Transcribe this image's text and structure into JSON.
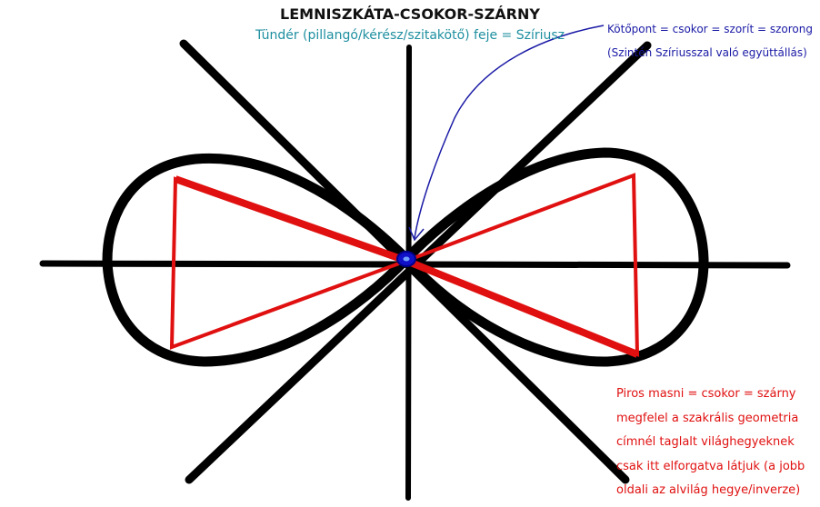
{
  "title": "LEMNISZKÁTA-CSOKOR-SZÁRNY",
  "subtitle": "Tündér (pillangó/kérész/szitakötő) feje = Szíriusz",
  "knot_note": {
    "line1": "Kötőpont = csokor = szorít = szorong",
    "line2": "(Szintén Szíriusszal való együttállás)"
  },
  "red_note": {
    "lines": [
      "Piros masni = csokor = szárny",
      "megfelel a szakrális geometria",
      "címnél taglalt világhegyeknek",
      "csak itt elforgatva látjuk (a jobb",
      "oldali az alvilág hegye/inverze)"
    ]
  },
  "colors": {
    "curve": "#000000",
    "bow": "#e01010",
    "knot": "#1010c8",
    "arrow": "#1a1aa6",
    "subtitle": "#1e8fa0"
  }
}
